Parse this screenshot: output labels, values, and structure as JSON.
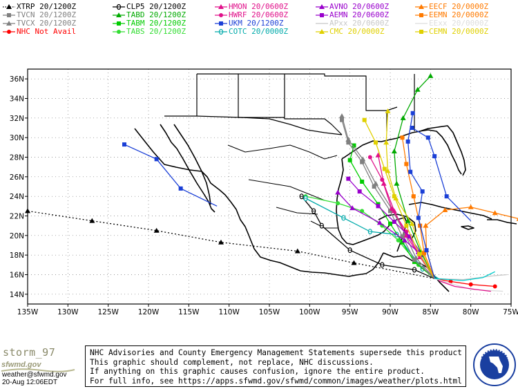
{
  "legend": [
    {
      "label": "XTRP 20/1200Z",
      "color": "#000000",
      "marker": "triangle",
      "line": "dotted"
    },
    {
      "label": "TVCN 20/1200Z",
      "color": "#808080",
      "marker": "square",
      "line": "solid"
    },
    {
      "label": "TVCX 20/1200Z",
      "color": "#808080",
      "marker": "triangle",
      "line": "solid"
    },
    {
      "label": "NHC Not Avail",
      "color": "#ff0000",
      "marker": "circle",
      "line": "solid"
    },
    {
      "label": "CLP5 20/1200Z",
      "color": "#000000",
      "marker": "theta",
      "line": "solid"
    },
    {
      "label": "TABD 20/1200Z",
      "color": "#00aa00",
      "marker": "triangle",
      "line": "solid"
    },
    {
      "label": "TABM 20/1200Z",
      "color": "#00cc00",
      "marker": "square",
      "line": "solid"
    },
    {
      "label": "TABS 20/1200Z",
      "color": "#33dd33",
      "marker": "circle",
      "line": "solid"
    },
    {
      "label": "HMON 20/0600Z",
      "color": "#e0108a",
      "marker": "triangle",
      "line": "solid"
    },
    {
      "label": "HWRF 20/0600Z",
      "color": "#e0108a",
      "marker": "circle",
      "line": "solid"
    },
    {
      "label": "UKM  20/1200Z",
      "color": "#1a3fd6",
      "marker": "square",
      "line": "solid"
    },
    {
      "label": "COTC 20/0000Z",
      "color": "#00aaaa",
      "marker": "theta",
      "line": "solid"
    },
    {
      "label": "AVNO 20/0600Z",
      "color": "#9900cc",
      "marker": "triangle",
      "line": "solid"
    },
    {
      "label": "AEMN 20/0600Z",
      "color": "#9900cc",
      "marker": "square",
      "line": "solid"
    },
    {
      "label": "APxx 20/0600Z",
      "color": "#c8c8c8",
      "marker": "none",
      "line": "solid"
    },
    {
      "label": "CMC  20/0000Z",
      "color": "#e0d000",
      "marker": "triangle",
      "line": "solid"
    },
    {
      "label": "EECF 20/0000Z",
      "color": "#ff7a00",
      "marker": "triangle",
      "line": "solid"
    },
    {
      "label": "EEMN 20/0000Z",
      "color": "#ff7a00",
      "marker": "square",
      "line": "solid"
    },
    {
      "label": "EExx 20/0000Z",
      "color": "#dddddd",
      "marker": "none",
      "line": "solid"
    },
    {
      "label": "CEMN 20/0000Z",
      "color": "#e0d000",
      "marker": "square",
      "line": "solid"
    }
  ],
  "map": {
    "lon_range": [
      -135,
      -75
    ],
    "lat_range": [
      13,
      37
    ],
    "lon_ticks": [
      -135,
      -130,
      -125,
      -120,
      -115,
      -110,
      -105,
      -100,
      -95,
      -90,
      -85,
      -80,
      -75
    ],
    "lat_ticks": [
      14,
      16,
      18,
      20,
      22,
      24,
      26,
      28,
      30,
      32,
      34,
      36
    ],
    "lon_tick_labels": [
      "135W",
      "130W",
      "125W",
      "120W",
      "115W",
      "110W",
      "105W",
      "100W",
      "95W",
      "90W",
      "85W",
      "80W",
      "75W"
    ],
    "lat_tick_labels": [
      "14N",
      "16N",
      "18N",
      "20N",
      "22N",
      "24N",
      "26N",
      "28N",
      "30N",
      "32N",
      "34N",
      "36N"
    ],
    "grid": true
  },
  "tracks": [
    {
      "model": "XTRP",
      "color": "#000000",
      "dash": "2,3",
      "marker": "triangle",
      "points": [
        [
          -84.5,
          15.6
        ],
        [
          -94.5,
          17.2
        ],
        [
          -101.5,
          18.4
        ],
        [
          -111,
          19.3
        ],
        [
          -119,
          20.5
        ],
        [
          -127,
          21.5
        ],
        [
          -135,
          22.5
        ]
      ]
    },
    {
      "model": "UKM-pacific",
      "color": "#1a3fd6",
      "dash": "",
      "marker": "square",
      "points": [
        [
          -111.5,
          23
        ],
        [
          -116,
          24.8
        ],
        [
          -119,
          27.8
        ],
        [
          -123,
          29.3
        ]
      ]
    },
    {
      "model": "CLP5",
      "color": "#000000",
      "dash": "",
      "marker": "theta",
      "points": [
        [
          -84.5,
          15.6
        ],
        [
          -87,
          16.5
        ],
        [
          -91,
          17
        ],
        [
          -95,
          18.5
        ],
        [
          -98.5,
          21
        ],
        [
          -99.5,
          22.5
        ],
        [
          -101,
          24
        ]
      ]
    },
    {
      "model": "TABS",
      "color": "#33dd33",
      "dash": "",
      "marker": "circle",
      "points": [
        [
          -84.5,
          15.6
        ],
        [
          -86.5,
          17
        ],
        [
          -89,
          19.5
        ],
        [
          -91,
          21
        ],
        [
          -93.5,
          22.5
        ],
        [
          -96.5,
          23.3
        ],
        [
          -100.5,
          24
        ]
      ]
    },
    {
      "model": "COTC",
      "color": "#00aaaa",
      "dash": "",
      "marker": "theta",
      "points": [
        [
          -84,
          15.6
        ],
        [
          -86,
          16.6
        ],
        [
          -89.2,
          20.1
        ],
        [
          -92.5,
          20.4
        ],
        [
          -95.8,
          21.8
        ],
        [
          -100.5,
          23.8
        ]
      ]
    },
    {
      "model": "TABM",
      "color": "#00cc00",
      "dash": "",
      "marker": "square",
      "points": [
        [
          -84.5,
          15.6
        ],
        [
          -87,
          17.3
        ],
        [
          -88.5,
          19.3
        ],
        [
          -90,
          21.2
        ],
        [
          -91.5,
          23.2
        ],
        [
          -93.5,
          25.5
        ],
        [
          -95,
          27.7
        ],
        [
          -94.5,
          29.2
        ]
      ]
    },
    {
      "model": "TVCN",
      "color": "#808080",
      "dash": "",
      "marker": "square",
      "points": [
        [
          -84.5,
          15.6
        ],
        [
          -87,
          17.5
        ],
        [
          -88.5,
          19.9
        ],
        [
          -90,
          22.5
        ],
        [
          -92,
          25
        ],
        [
          -93.5,
          27.5
        ],
        [
          -95.2,
          29.5
        ],
        [
          -96,
          31.8
        ]
      ]
    },
    {
      "model": "TVCX",
      "color": "#808080",
      "dash": "",
      "marker": "triangle",
      "points": [
        [
          -84.5,
          15.6
        ],
        [
          -86.8,
          17.7
        ],
        [
          -88.2,
          20.2
        ],
        [
          -89.8,
          22.7
        ],
        [
          -91.8,
          25.3
        ],
        [
          -93.4,
          27.8
        ],
        [
          -95.2,
          29.8
        ],
        [
          -96,
          32.2
        ]
      ]
    },
    {
      "model": "HMON",
      "color": "#e0108a",
      "dash": "",
      "marker": "triangle",
      "points": [
        [
          -84.5,
          15.6
        ],
        [
          -86.3,
          17.8
        ],
        [
          -88,
          20
        ],
        [
          -89.5,
          22.5
        ],
        [
          -90.8,
          25.3
        ],
        [
          -91.5,
          28.2
        ]
      ]
    },
    {
      "model": "HWRF",
      "color": "#e0108a",
      "dash": "",
      "marker": "circle",
      "points": [
        [
          -84.5,
          15.6
        ],
        [
          -86.4,
          18
        ],
        [
          -88,
          20.4
        ],
        [
          -89.8,
          22.7
        ],
        [
          -91,
          25.7
        ],
        [
          -92.5,
          28
        ]
      ]
    },
    {
      "model": "AVNO",
      "color": "#9900cc",
      "dash": "",
      "marker": "triangle",
      "points": [
        [
          -84.5,
          15.6
        ],
        [
          -86.5,
          18.3
        ],
        [
          -88.2,
          19.5
        ],
        [
          -91.3,
          21.3
        ],
        [
          -94.7,
          22.8
        ],
        [
          -96.5,
          24.4
        ]
      ]
    },
    {
      "model": "AEMN",
      "color": "#9900cc",
      "dash": "",
      "marker": "square",
      "points": [
        [
          -84.5,
          15.6
        ],
        [
          -86,
          18
        ],
        [
          -87.6,
          19.9
        ],
        [
          -89.5,
          21.4
        ],
        [
          -91.5,
          23
        ],
        [
          -93.8,
          24.5
        ],
        [
          -95.2,
          25.8
        ]
      ]
    },
    {
      "model": "TABD",
      "color": "#00aa00",
      "dash": "",
      "marker": "triangle",
      "points": [
        [
          -84.5,
          15.6
        ],
        [
          -86.2,
          18.3
        ],
        [
          -87.8,
          21.5
        ],
        [
          -89.2,
          25.3
        ],
        [
          -89.5,
          28.6
        ],
        [
          -88.4,
          32
        ],
        [
          -86.6,
          34.9
        ],
        [
          -85,
          36.3
        ]
      ]
    },
    {
      "model": "CMC",
      "color": "#e0d000",
      "dash": "",
      "marker": "triangle",
      "points": [
        [
          -84.5,
          15.6
        ],
        [
          -86,
          18.2
        ],
        [
          -87.3,
          21.2
        ],
        [
          -89.3,
          23.8
        ],
        [
          -90.3,
          26.6
        ],
        [
          -90.5,
          29.5
        ],
        [
          -90.3,
          32.7
        ]
      ]
    },
    {
      "model": "CEMN",
      "color": "#e0d000",
      "dash": "",
      "marker": "square",
      "points": [
        [
          -84.5,
          15.6
        ],
        [
          -86.4,
          18.1
        ],
        [
          -88,
          21
        ],
        [
          -89.5,
          24
        ],
        [
          -90.7,
          26.8
        ],
        [
          -91.8,
          29.5
        ],
        [
          -93.2,
          31.8
        ]
      ]
    },
    {
      "model": "EECF",
      "color": "#ff7a00",
      "dash": "",
      "marker": "triangle",
      "points": [
        [
          -84.5,
          15.6
        ],
        [
          -85.5,
          18.5
        ],
        [
          -85.6,
          21
        ],
        [
          -83.2,
          22.6
        ],
        [
          -80,
          22.9
        ],
        [
          -77,
          22.3
        ],
        [
          -74,
          21.7
        ]
      ]
    },
    {
      "model": "EEMN",
      "color": "#ff7a00",
      "dash": "",
      "marker": "square",
      "points": [
        [
          -84.5,
          15.6
        ],
        [
          -85.8,
          18.2
        ],
        [
          -86.3,
          21
        ],
        [
          -87.1,
          24
        ],
        [
          -88,
          27.3
        ],
        [
          -88.5,
          30
        ]
      ]
    },
    {
      "model": "UKM",
      "color": "#1a3fd6",
      "dash": "",
      "marker": "square",
      "points": [
        [
          -84.5,
          15.6
        ],
        [
          -85.5,
          18.5
        ],
        [
          -86.5,
          21.8
        ],
        [
          -86,
          24.5
        ],
        [
          -87.5,
          26.5
        ],
        [
          -87.8,
          29.6
        ],
        [
          -87.2,
          32.5
        ]
      ]
    },
    {
      "model": "UKM-east",
      "color": "#1a3fd6",
      "dash": "",
      "marker": "square",
      "points": [
        [
          -80,
          21.5
        ],
        [
          -83,
          24
        ],
        [
          -84.5,
          28.1
        ],
        [
          -85.3,
          30
        ],
        [
          -87.3,
          31
        ]
      ]
    },
    {
      "model": "NHC-east",
      "color": "#ff0000",
      "dash": "",
      "marker": "circle",
      "points": [
        [
          -84.5,
          15.6
        ],
        [
          -82.5,
          15.3
        ],
        [
          -80,
          15
        ],
        [
          -77,
          14.8
        ]
      ]
    },
    {
      "model": "APxx",
      "color": "#c8c8c8",
      "dash": "",
      "marker": "none",
      "points": [
        [
          -84.5,
          15.6
        ],
        [
          -81,
          15.5
        ],
        [
          -77,
          15.9
        ],
        [
          -75.5,
          16
        ]
      ]
    },
    {
      "model": "EExx",
      "color": "#dddddd",
      "dash": "",
      "marker": "none",
      "points": [
        [
          -84.5,
          15.6
        ],
        [
          -80,
          14.5
        ],
        [
          -76,
          14.3
        ]
      ]
    },
    {
      "model": "extra-cyan",
      "color": "#00cccc",
      "dash": "",
      "marker": "none",
      "points": [
        [
          -84.5,
          15.6
        ],
        [
          -81,
          15.4
        ],
        [
          -78.5,
          15.7
        ],
        [
          -77,
          16.3
        ]
      ]
    },
    {
      "model": "extra-magenta",
      "color": "#e0108a",
      "dash": "",
      "marker": "none",
      "points": [
        [
          -84,
          15.4
        ],
        [
          -82,
          14.8
        ],
        [
          -79.5,
          14.5
        ],
        [
          -77.5,
          14.3
        ]
      ]
    }
  ],
  "footer": {
    "brand": "storm_97",
    "brand_url": "sfwmd.gov",
    "email": "weather@sfwmd.gov",
    "timestamp": "20-Aug 12:06EDT",
    "disclaimer": [
      "NHC Advisories and County Emergency Management Statements supersede this product.",
      "This graphic should complement, not replace, NHC discussions.",
      "If anything on this graphic causes confusion, ignore the entire product.",
      "For full info, see  https://apps.sfwmd.gov/sfwmd/common/images/weather/plots.html"
    ],
    "seal_text": "SOUTH FLORIDA WATER MANAGEMENT DISTRICT"
  }
}
